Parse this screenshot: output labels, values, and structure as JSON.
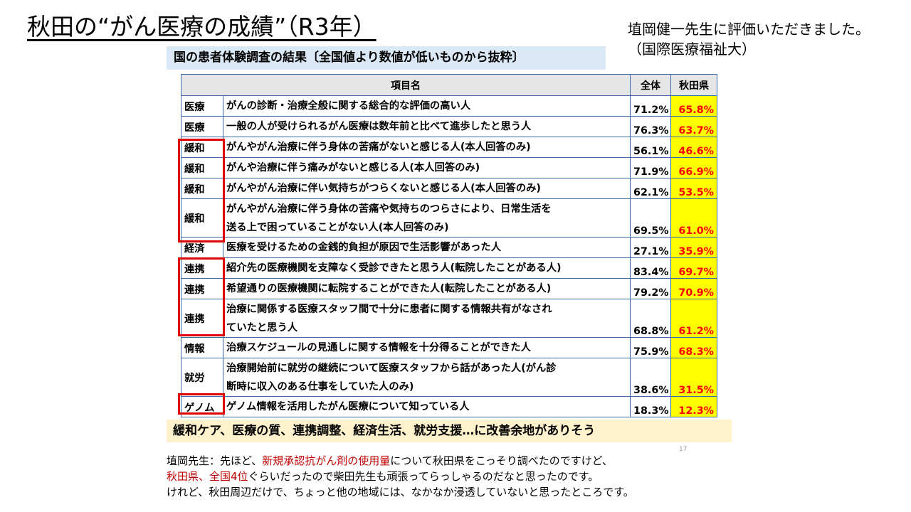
{
  "title": "秋田の“がん医療の成績”（R3年）",
  "credit": {
    "line1": "埴岡健一先生に評価いただきました。",
    "line2": "（国際医療福祉大）"
  },
  "panel_header": "国の患者体験調査の結果〔全国値より数値が低いものから抜粋〕",
  "table": {
    "headers": {
      "item": "項目名",
      "total": "全体",
      "pref": "秋田県"
    },
    "rows": [
      {
        "category": "医療",
        "item": "がんの診断・治療全般に関する総合的な評価の高い人",
        "total": "71.2%",
        "pref": "65.8%"
      },
      {
        "category": "医療",
        "item": "一般の人が受けられるがん医療は数年前と比べて進歩したと思う人",
        "total": "76.3%",
        "pref": "63.7%"
      },
      {
        "category": "緩和",
        "item": "がんやがん治療に伴う身体の苦痛がないと感じる人(本人回答のみ)",
        "total": "56.1%",
        "pref": "46.6%"
      },
      {
        "category": "緩和",
        "item": "がんや治療に伴う痛みがないと感じる人(本人回答のみ)",
        "total": "71.9%",
        "pref": "66.9%"
      },
      {
        "category": "緩和",
        "item": "がんやがん治療に伴い気持ちがつらくないと感じる人(本人回答のみ)",
        "total": "62.1%",
        "pref": "53.5%"
      },
      {
        "category": "緩和",
        "item_line1": "がんやがん治療に伴う身体の苦痛や気持ちのつらさにより、日常生活を",
        "item_line2": "送る上で困っていることがない人(本人回答のみ)",
        "total": "69.5%",
        "pref": "61.0%"
      },
      {
        "category": "経済",
        "item": "医療を受けるための金銭的負担が原因で生活影響があった人",
        "total": "27.1%",
        "pref": "35.9%"
      },
      {
        "category": "連携",
        "item": "紹介先の医療機関を支障なく受診できたと思う人(転院したことがある人)",
        "total": "83.4%",
        "pref": "69.7%"
      },
      {
        "category": "連携",
        "item": "希望通りの医療機関に転院することができた人(転院したことがある人)",
        "total": "79.2%",
        "pref": "70.9%"
      },
      {
        "category": "連携",
        "item_line1": "治療に関係する医療スタッフ間で十分に患者に関する情報共有がなされ",
        "item_line2": "ていたと思う人",
        "total": "68.8%",
        "pref": "61.2%"
      },
      {
        "category": "情報",
        "item": "治療スケジュールの見通しに関する情報を十分得ることができた人",
        "total": "75.9%",
        "pref": "68.3%"
      },
      {
        "category": "就労",
        "item_line1": "治療開始前に就労の継続について医療スタッフから話があった人(がん診",
        "item_line2": "断時に収入のある仕事をしていた人のみ)",
        "total": "38.6%",
        "pref": "31.5%"
      },
      {
        "category": "ゲノム",
        "item": "ゲノム情報を活用したがん医療について知っている人",
        "total": "18.3%",
        "pref": "12.3%"
      }
    ]
  },
  "conclusion": "緩和ケア、医療の質、連携調整、経済生活、就労支援…に改善余地がありそう",
  "page_number": "17",
  "note": {
    "l1a": "埴岡先生：先ほど、",
    "l1b": "新規承認抗がん剤の使用量",
    "l1c": "について秋田県をこっそり調べたのですけど、",
    "l2a": "秋田県、全国4位",
    "l2b": "ぐらいだったので柴田先生も頑張ってらっしゃるのだなと思ったのです。",
    "l3": "けれど、秋田周辺だけで、ちょっと他の地域には、なかなか浸透していないと思ったところです。"
  },
  "colors": {
    "highlight": "#ffff00",
    "pref_text": "#ff0000",
    "box": "#e00000",
    "note_red": "#c00000",
    "header_bg": "#dbe8f5",
    "conclusion_bg": "#fff2cc"
  }
}
